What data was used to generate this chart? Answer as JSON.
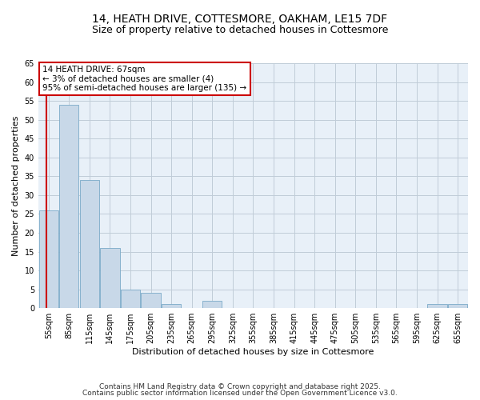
{
  "title_line1": "14, HEATH DRIVE, COTTESMORE, OAKHAM, LE15 7DF",
  "title_line2": "Size of property relative to detached houses in Cottesmore",
  "xlabel": "Distribution of detached houses by size in Cottesmore",
  "ylabel": "Number of detached properties",
  "categories": [
    "55sqm",
    "85sqm",
    "115sqm",
    "145sqm",
    "175sqm",
    "205sqm",
    "235sqm",
    "265sqm",
    "295sqm",
    "325sqm",
    "355sqm",
    "385sqm",
    "415sqm",
    "445sqm",
    "475sqm",
    "505sqm",
    "535sqm",
    "565sqm",
    "595sqm",
    "625sqm",
    "655sqm"
  ],
  "values": [
    26,
    54,
    34,
    16,
    5,
    4,
    1,
    0,
    2,
    0,
    0,
    0,
    0,
    0,
    0,
    0,
    0,
    0,
    0,
    1,
    1
  ],
  "bar_color": "#c8d8e8",
  "bar_edge_color": "#7aaac8",
  "highlight_line_color": "#cc0000",
  "annotation_title": "14 HEATH DRIVE: 67sqm",
  "annotation_line1": "← 3% of detached houses are smaller (4)",
  "annotation_line2": "95% of semi-detached houses are larger (135) →",
  "annotation_box_color": "#cc0000",
  "ylim": [
    0,
    65
  ],
  "yticks": [
    0,
    5,
    10,
    15,
    20,
    25,
    30,
    35,
    40,
    45,
    50,
    55,
    60,
    65
  ],
  "footer_line1": "Contains HM Land Registry data © Crown copyright and database right 2025.",
  "footer_line2": "Contains public sector information licensed under the Open Government Licence v3.0.",
  "bg_color": "#ffffff",
  "plot_bg_color": "#e8f0f8",
  "grid_color": "#c0ccd8",
  "title_fontsize": 10,
  "subtitle_fontsize": 9,
  "axis_label_fontsize": 8,
  "tick_fontsize": 7,
  "annotation_fontsize": 7.5,
  "footer_fontsize": 6.5
}
